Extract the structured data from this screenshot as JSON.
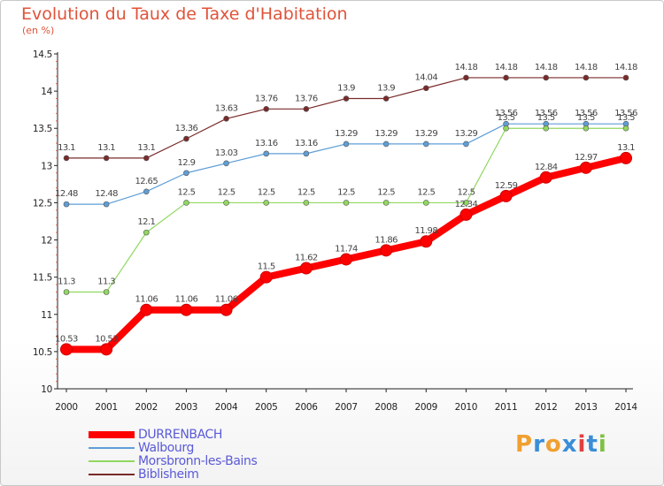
{
  "header": {
    "title": "Evolution du Taux de Taxe d'Habitation",
    "subtitle": "(en %)"
  },
  "logo": {
    "text": "Proxiti",
    "letters": [
      "P",
      "r",
      "o",
      "x",
      "i",
      "t",
      "i"
    ],
    "colors": [
      "#f0a030",
      "#3a8ed8",
      "#f0a030",
      "#3a8ed8",
      "#e04040",
      "#3a8ed8",
      "#80c040"
    ]
  },
  "chart_data": {
    "type": "line",
    "title": "Evolution du Taux de Taxe d'Habitation",
    "subtitle": "(en %)",
    "xlabel": "",
    "ylabel": "",
    "x": [
      "2000",
      "2001",
      "2002",
      "2003",
      "2004",
      "2005",
      "2006",
      "2007",
      "2008",
      "2009",
      "2010",
      "2011",
      "2012",
      "2013",
      "2014"
    ],
    "ylim": [
      10,
      14.5
    ],
    "yticks": [
      "10",
      "10.5",
      "11",
      "11.5",
      "12",
      "12.5",
      "13",
      "13.5",
      "14",
      "14.5"
    ],
    "grid": false,
    "legend_position": "bottom-left",
    "series": [
      {
        "name": "DURRENBACH",
        "color": "#ff0000",
        "width": 8,
        "values": [
          10.53,
          10.53,
          11.06,
          11.06,
          11.06,
          11.5,
          11.62,
          11.74,
          11.86,
          11.98,
          12.34,
          12.59,
          12.84,
          12.97,
          13.1
        ],
        "labels": [
          "10.53",
          "10.53",
          "11.06",
          "11.06",
          "11.06",
          "11.5",
          "11.62",
          "11.74",
          "11.86",
          "11.98",
          "12.34",
          "12.59",
          "12.84",
          "12.97",
          "13.1"
        ]
      },
      {
        "name": "Walbourg",
        "color": "#5e9ed6",
        "width": 1.2,
        "values": [
          12.48,
          12.48,
          12.65,
          12.9,
          13.03,
          13.16,
          13.16,
          13.29,
          13.29,
          13.29,
          13.29,
          13.56,
          13.56,
          13.56,
          13.56
        ],
        "labels": [
          "12.48",
          "12.48",
          "12.65",
          "12.9",
          "13.03",
          "13.16",
          "13.16",
          "13.29",
          "13.29",
          "13.29",
          "13.29",
          "13.56",
          "13.56",
          "13.56",
          "13.56"
        ]
      },
      {
        "name": "Morsbronn-les-Bains",
        "color": "#90d860",
        "width": 1.2,
        "values": [
          11.3,
          11.3,
          12.1,
          12.5,
          12.5,
          12.5,
          12.5,
          12.5,
          12.5,
          12.5,
          12.5,
          13.5,
          13.5,
          13.5,
          13.5
        ],
        "labels": [
          "11.3",
          "11.3",
          "12.1",
          "12.5",
          "12.5",
          "12.5",
          "12.5",
          "12.5",
          "12.5",
          "12.5",
          "12.5",
          "13.5",
          "13.5",
          "13.5",
          "13.5"
        ]
      },
      {
        "name": "Biblisheim",
        "color": "#7a2a2a",
        "width": 1.2,
        "values": [
          13.1,
          13.1,
          13.1,
          13.36,
          13.63,
          13.76,
          13.76,
          13.9,
          13.9,
          14.04,
          14.18,
          14.18,
          14.18,
          14.18,
          14.18
        ],
        "labels": [
          "13.1",
          "13.1",
          "13.1",
          "13.36",
          "13.63",
          "13.76",
          "13.76",
          "13.9",
          "13.9",
          "14.04",
          "14.18",
          "14.18",
          "14.18",
          "14.18",
          "14.18"
        ]
      }
    ]
  }
}
